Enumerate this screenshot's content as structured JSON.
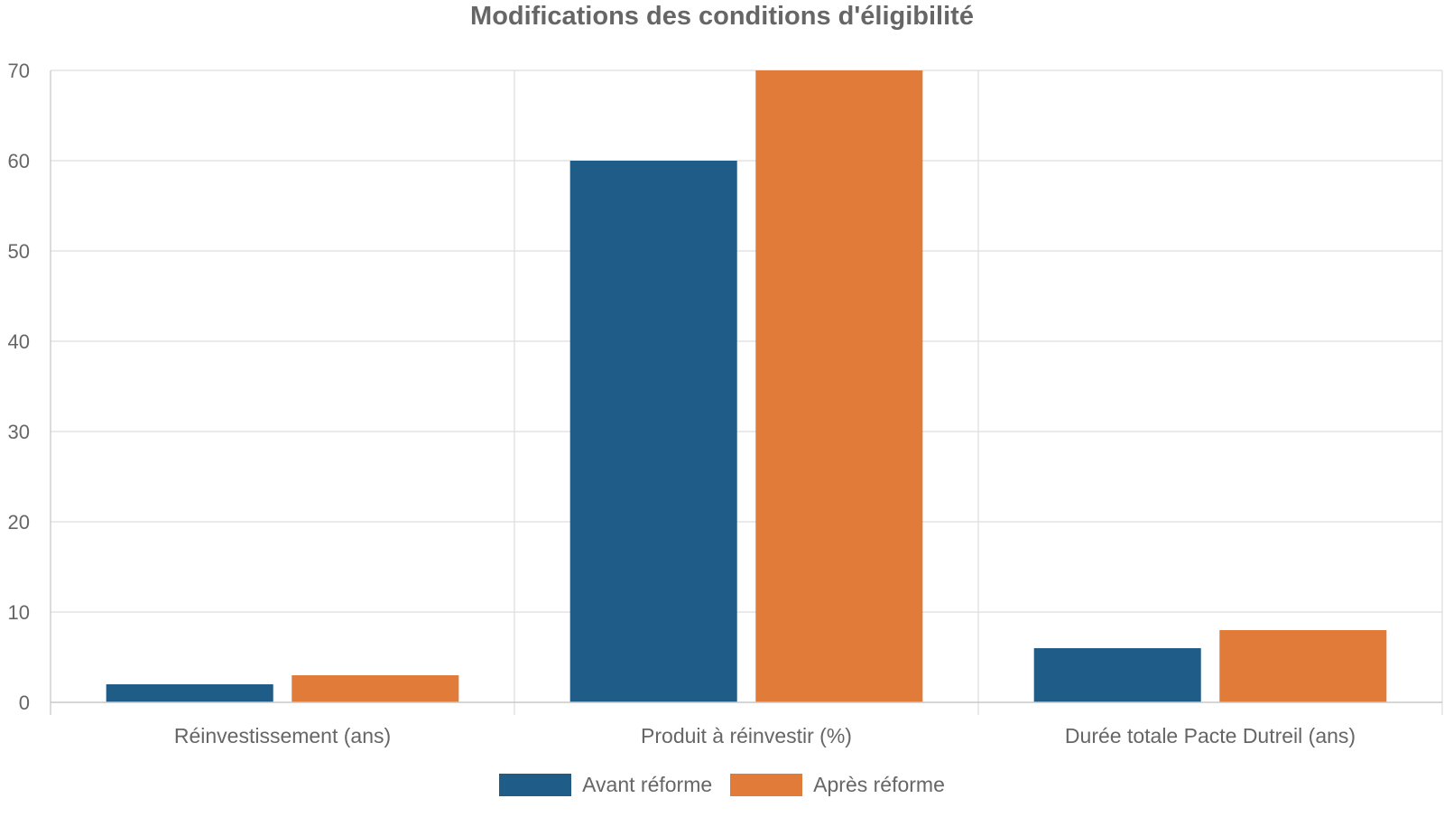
{
  "chart_data": {
    "type": "bar",
    "title": "Modifications des conditions d'éligibilité",
    "categories": [
      "Réinvestissement (ans)",
      "Produit à réinvestir (%)",
      "Durée totale Pacte Dutreil (ans)"
    ],
    "series": [
      {
        "name": "Avant réforme",
        "values": [
          2,
          60,
          6
        ],
        "color": "#1f5c87"
      },
      {
        "name": "Après réforme",
        "values": [
          3,
          70,
          8
        ],
        "color": "#e07b39"
      }
    ],
    "ylim": [
      0,
      70
    ],
    "yticks": [
      0,
      10,
      20,
      30,
      40,
      50,
      60,
      70
    ],
    "grid": true,
    "legend": "bottom-center"
  }
}
